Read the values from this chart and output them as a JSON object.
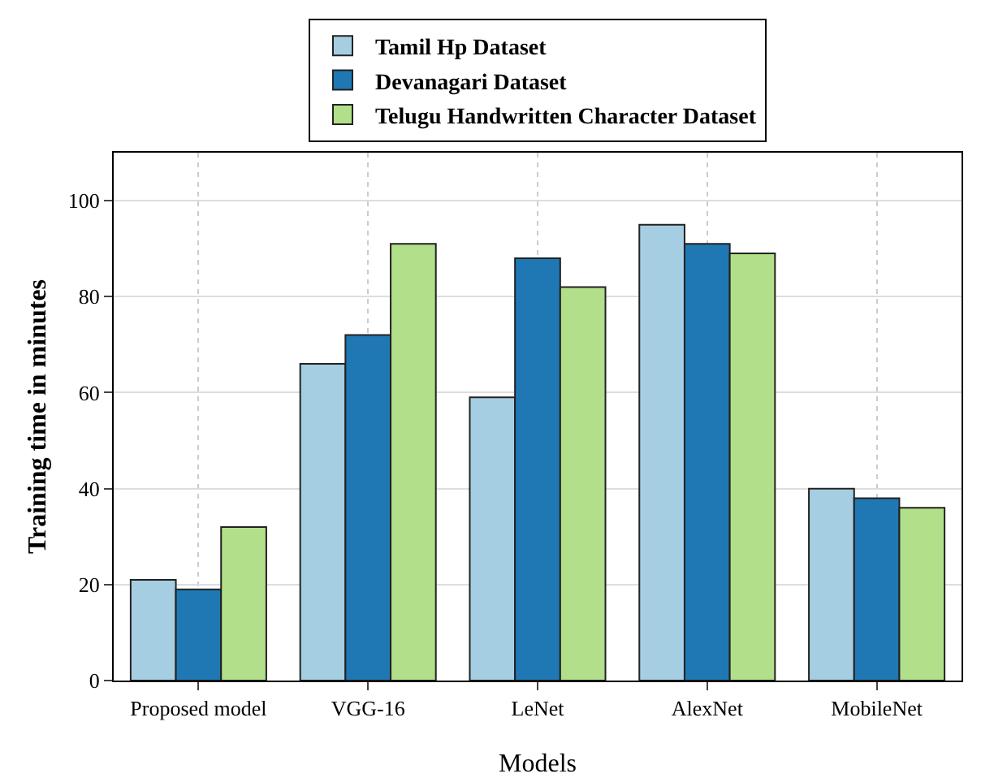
{
  "chart_data": {
    "type": "bar",
    "xlabel": "Models",
    "ylabel": "Training time in minutes",
    "categories": [
      "Proposed model",
      "VGG-16",
      "LeNet",
      "AlexNet",
      "MobileNet"
    ],
    "series": [
      {
        "name": "Tamil Hp Dataset",
        "color": "#a6cee3",
        "values": [
          21,
          66,
          59,
          95,
          40
        ]
      },
      {
        "name": "Devanagari Dataset",
        "color": "#1f78b4",
        "values": [
          19,
          72,
          88,
          91,
          38
        ]
      },
      {
        "name": "Telugu Handwritten Character Dataset",
        "color": "#b2df8a",
        "values": [
          32,
          91,
          82,
          89,
          36
        ]
      }
    ],
    "ylim": [
      0,
      110
    ],
    "yticks": [
      0,
      20,
      40,
      60,
      80,
      100
    ],
    "grid": true,
    "legend": "top"
  }
}
